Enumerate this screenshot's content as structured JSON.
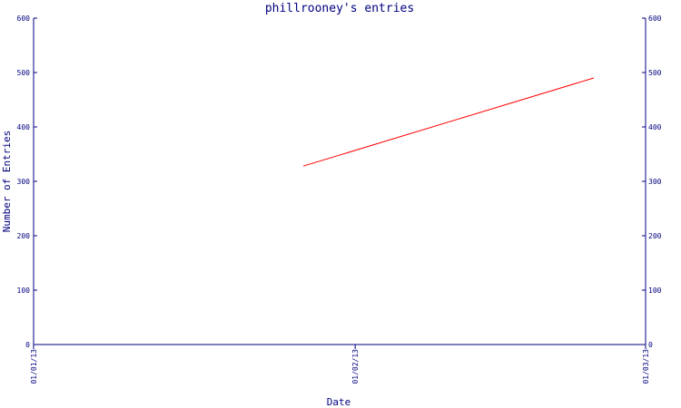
{
  "chart_data": {
    "type": "line",
    "title": "phillrooney's entries",
    "xlabel": "Date",
    "ylabel": "Number of Entries",
    "x_ticks": [
      "01/01/13",
      "01/02/13",
      "01/03/13"
    ],
    "x_tick_dates": [
      "2013-01-01",
      "2013-02-01",
      "2013-03-01"
    ],
    "y_ticks": [
      0,
      100,
      200,
      300,
      400,
      500,
      600
    ],
    "ylim": [
      0,
      600
    ],
    "xlim": [
      "2013-01-01",
      "2013-03-01"
    ],
    "grid": false,
    "axis_color": "#00007f",
    "series": [
      {
        "color": "#ff0000",
        "points": [
          {
            "x": "2013-01-27",
            "y": 328
          },
          {
            "x": "2013-02-24",
            "y": 490
          }
        ]
      }
    ]
  }
}
